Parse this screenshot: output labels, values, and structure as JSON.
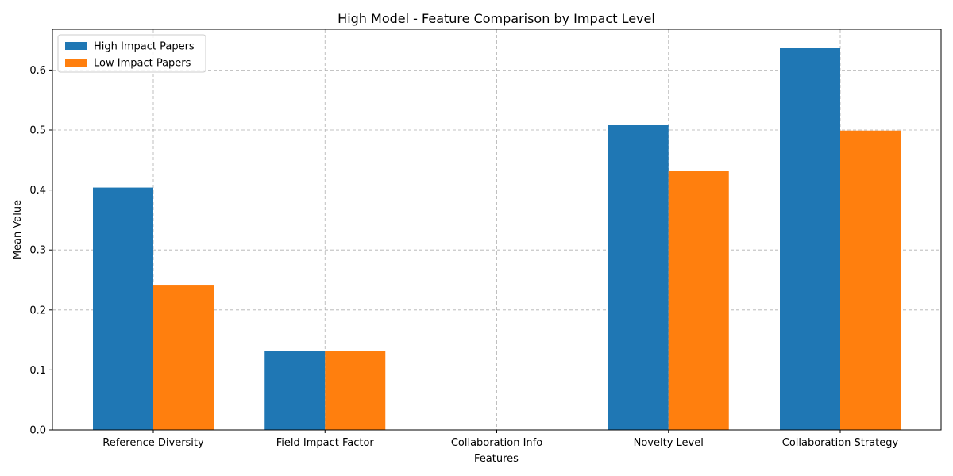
{
  "chart_data": {
    "type": "bar",
    "title": "High Model - Feature Comparison by Impact Level",
    "xlabel": "Features",
    "ylabel": "Mean Value",
    "categories": [
      "Reference Diversity",
      "Field Impact Factor",
      "Collaboration Info",
      "Novelty Level",
      "Collaboration Strategy"
    ],
    "series": [
      {
        "name": "High Impact Papers",
        "color": "#1f77b4",
        "values": [
          0.404,
          0.132,
          0.0,
          0.509,
          0.637
        ]
      },
      {
        "name": "Low Impact Papers",
        "color": "#ff7f0e",
        "values": [
          0.242,
          0.131,
          0.0,
          0.432,
          0.499
        ]
      }
    ],
    "ylim": [
      0,
      0.668
    ],
    "yticks": [
      "0.0",
      "0.1",
      "0.2",
      "0.3",
      "0.4",
      "0.5",
      "0.6"
    ],
    "grid": true,
    "legend_position": "top-left"
  }
}
